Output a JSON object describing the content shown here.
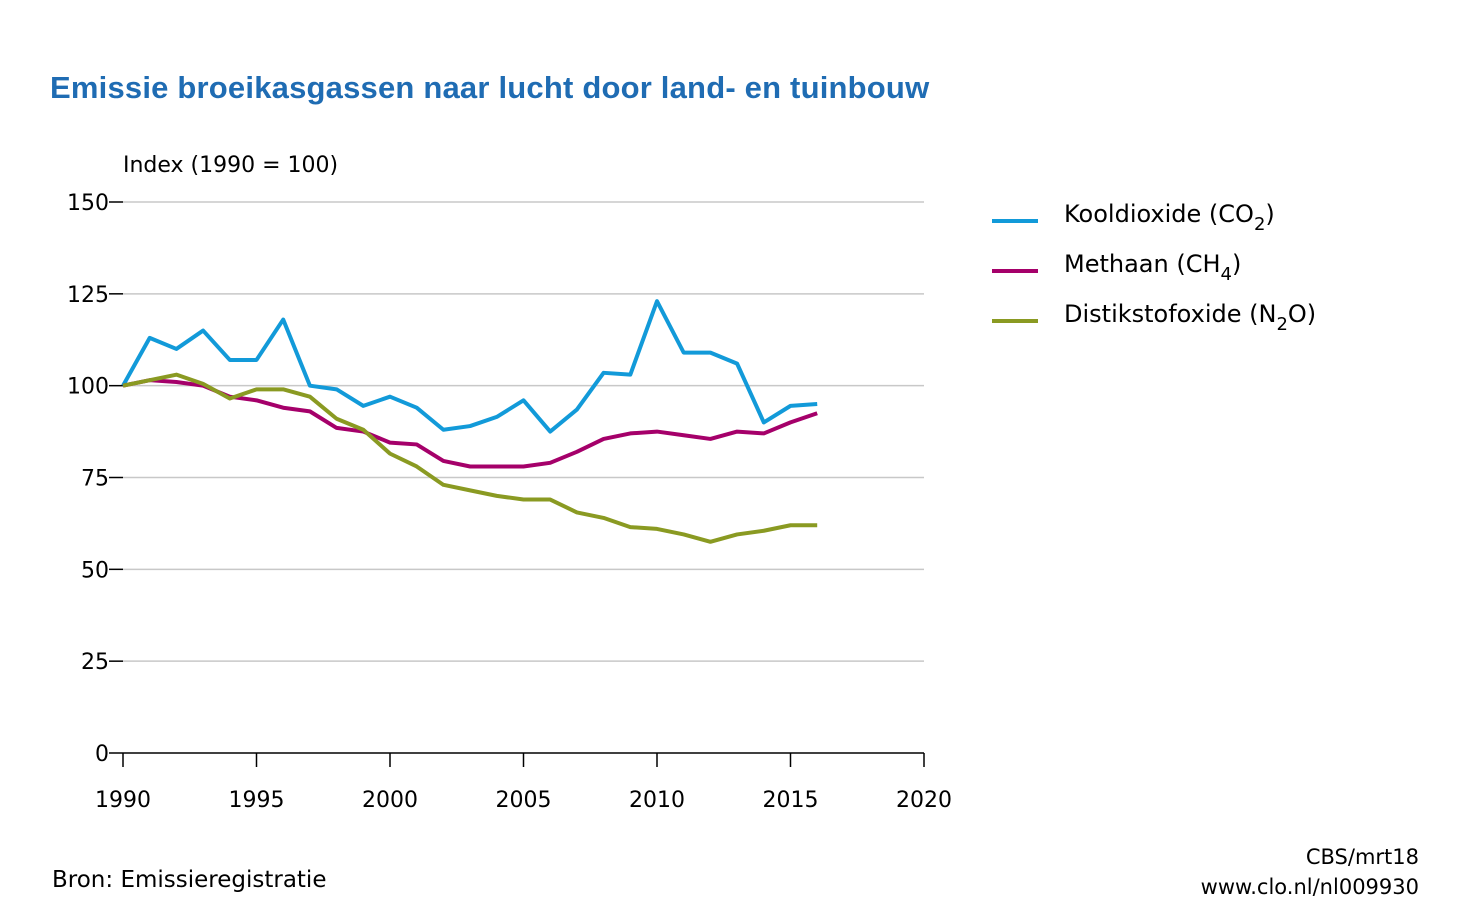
{
  "chart_data": {
    "type": "line",
    "title": "Emissie broeikasgassen naar lucht door land- en tuinbouw",
    "ylabel": "Index (1990 = 100)",
    "xlabel": "",
    "xlim": [
      1990,
      2020
    ],
    "ylim": [
      0,
      150
    ],
    "xticks": [
      1990,
      1995,
      2000,
      2005,
      2010,
      2015,
      2020
    ],
    "yticks": [
      0,
      25,
      50,
      75,
      100,
      125,
      150
    ],
    "grid": "horizontal",
    "legend_position": "right",
    "x": [
      1990,
      1991,
      1992,
      1993,
      1994,
      1995,
      1996,
      1997,
      1998,
      1999,
      2000,
      2001,
      2002,
      2003,
      2004,
      2005,
      2006,
      2007,
      2008,
      2009,
      2010,
      2011,
      2012,
      2013,
      2014,
      2015,
      2016
    ],
    "series": [
      {
        "name": "Kooldioxide (CO2)",
        "label_main": "Kooldioxide (CO",
        "label_sub": "2",
        "label_end": ")",
        "color": "#129ad9",
        "values": [
          100,
          113,
          110,
          115,
          107,
          107,
          118,
          100,
          99,
          94.5,
          97,
          94,
          88,
          89,
          91.5,
          96,
          87.5,
          93.5,
          103.5,
          103,
          123,
          109,
          109,
          106,
          90,
          94.5,
          95
        ]
      },
      {
        "name": "Methaan (CH4)",
        "label_main": "Methaan (CH",
        "label_sub": "4",
        "label_end": ")",
        "color": "#a5006a",
        "values": [
          100,
          101.5,
          101,
          100,
          97,
          96,
          94,
          93,
          88.5,
          87.5,
          84.5,
          84,
          79.5,
          78,
          78,
          78,
          79,
          82,
          85.5,
          87,
          87.5,
          86.5,
          85.5,
          87.5,
          87,
          90,
          92.5
        ]
      },
      {
        "name": "Distikstofoxide (N2O)",
        "label_main": "Distikstofoxide (N",
        "label_sub": "2",
        "label_end": "O)",
        "color": "#8a9a22",
        "values": [
          100,
          101.5,
          103,
          100.5,
          96.5,
          99,
          99,
          97,
          91,
          88,
          81.5,
          78,
          73,
          71.5,
          70,
          69,
          69,
          65.5,
          64,
          61.5,
          61,
          59.5,
          57.5,
          59.5,
          60.5,
          62,
          62
        ]
      }
    ]
  },
  "source": "Bron: Emissieregistratie",
  "credit_line1": "CBS/mrt18",
  "credit_line2": "www.clo.nl/nl009930"
}
